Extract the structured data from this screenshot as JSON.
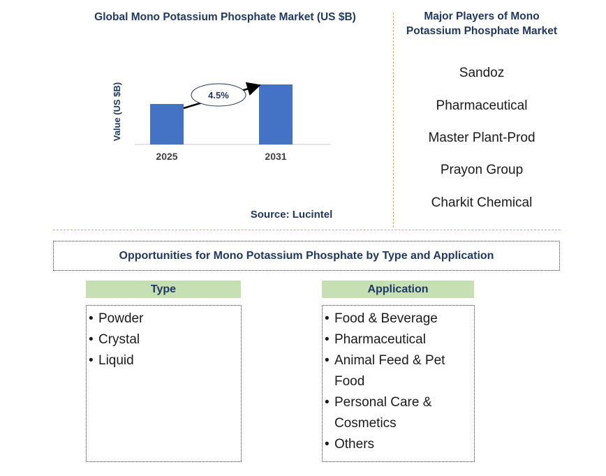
{
  "chart_data": {
    "type": "bar",
    "title": "Global Mono Potassium Phosphate Market (US $B)",
    "categories": [
      "2025",
      "2031"
    ],
    "values": [
      0.58,
      0.86
    ],
    "ylabel": "Value (US $B)",
    "xlabel": "",
    "ylim": [
      0,
      1.0
    ],
    "annotation": "4.5%",
    "bar_color": "#4472c4"
  },
  "source": "Source: Lucintel",
  "players": {
    "title": "Major Players of Mono Potassium Phosphate Market",
    "items": [
      "Sandoz",
      "Pharmaceutical",
      "Master Plant-Prod",
      "Prayon Group",
      "Charkit Chemical"
    ]
  },
  "opportunities": {
    "title": "Opportunities for Mono Potassium Phosphate by Type and Application",
    "type": {
      "header": "Type",
      "items": [
        "Powder",
        "Crystal",
        "Liquid"
      ]
    },
    "application": {
      "header": "Application",
      "items": [
        "Food & Beverage",
        "Pharmaceutical",
        "Animal Feed & Pet Food",
        "Personal Care & Cosmetics",
        "Others"
      ]
    }
  },
  "colors": {
    "title_navy": "#1f3864",
    "header_green": "#c6e0b4",
    "divider_gold": "#e0b040"
  }
}
